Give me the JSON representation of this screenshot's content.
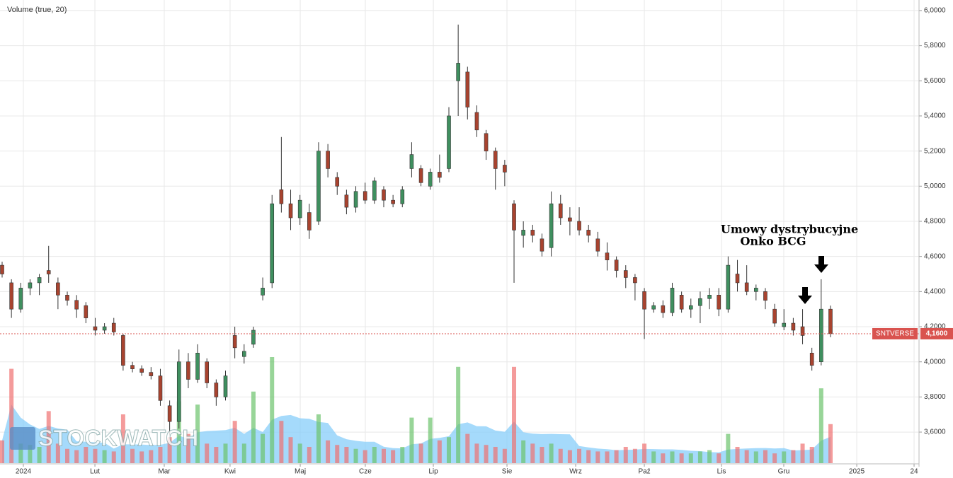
{
  "chart_data": {
    "type": "candlestick",
    "title": "Volume (true, 20)",
    "symbol": "SNTVERSE",
    "last_price": {
      "value": 4.16,
      "label": "4,1600"
    },
    "watermark": "STOCKWATCH",
    "annotation": [
      "Umowy dystrybucyjne",
      "Onko BCG"
    ],
    "up_color": "#3f8f5f",
    "down_color": "#a8432f",
    "volume_up_color": "#6cc36c",
    "volume_down_color": "#f07070",
    "volume_average_color": "#87cefa",
    "last_price_color": "#d9534f",
    "grid": true,
    "ylim": [
      3.403,
      6.06
    ],
    "yticks": [
      {
        "value": 3.6,
        "label": "3,6000"
      },
      {
        "value": 3.8,
        "label": "3,8000"
      },
      {
        "value": 4.0,
        "label": "4,0000"
      },
      {
        "value": 4.2,
        "label": "4,2000"
      },
      {
        "value": 4.4,
        "label": "4,4000"
      },
      {
        "value": 4.6,
        "label": "4,6000"
      },
      {
        "value": 4.8,
        "label": "4,8000"
      },
      {
        "value": 5.0,
        "label": "5,0000"
      },
      {
        "value": 5.2,
        "label": "5,2000"
      },
      {
        "value": 5.4,
        "label": "5,4000"
      },
      {
        "value": 5.6,
        "label": "5,6000"
      },
      {
        "value": 5.8,
        "label": "5,8000"
      },
      {
        "value": 6.0,
        "label": "6,0000"
      }
    ],
    "xlim": [
      -0.228,
      98.51
    ],
    "xticks": [
      {
        "value": 2.28,
        "label": "2024"
      },
      {
        "value": 9.97,
        "label": "Lut"
      },
      {
        "value": 17.42,
        "label": "Mar"
      },
      {
        "value": 24.49,
        "label": "Kwi"
      },
      {
        "value": 32.03,
        "label": "Maj"
      },
      {
        "value": 39.02,
        "label": "Cze"
      },
      {
        "value": 46.33,
        "label": "Lip"
      },
      {
        "value": 54.24,
        "label": "Sie"
      },
      {
        "value": 61.62,
        "label": "Wrz"
      },
      {
        "value": 69.0,
        "label": "Paź"
      },
      {
        "value": 77.29,
        "label": "Lis"
      },
      {
        "value": 83.98,
        "label": "Gru"
      },
      {
        "value": 91.82,
        "label": "2025"
      },
      {
        "value": 97.98,
        "label": "24"
      }
    ],
    "open": [
      4.55,
      4.45,
      4.3,
      4.42,
      4.45,
      4.52,
      4.45,
      4.38,
      4.35,
      4.32,
      4.2,
      4.18,
      4.22,
      4.15,
      3.98,
      3.96,
      3.94,
      3.92,
      3.75,
      3.66,
      4.0,
      3.9,
      4.0,
      3.88,
      3.8,
      4.15,
      4.03,
      4.1,
      4.38,
      4.45,
      4.98,
      4.9,
      4.82,
      4.85,
      4.8,
      5.2,
      5.05,
      4.95,
      4.88,
      4.97,
      4.92,
      4.98,
      4.92,
      4.9,
      5.1,
      5.1,
      5.0,
      5.08,
      5.1,
      5.6,
      5.65,
      5.42,
      5.3,
      5.2,
      5.12,
      4.9,
      4.72,
      4.75,
      4.7,
      4.65,
      4.9,
      4.82,
      4.8,
      4.75,
      4.7,
      4.62,
      4.58,
      4.52,
      4.48,
      4.4,
      4.3,
      4.32,
      4.28,
      4.38,
      4.3,
      4.32,
      4.36,
      4.38,
      4.3,
      4.5,
      4.45,
      4.4,
      4.4,
      4.3,
      4.2,
      4.22,
      4.2,
      4.05,
      4.0,
      4.3
    ],
    "high": [
      4.57,
      4.47,
      4.45,
      4.47,
      4.5,
      4.66,
      4.48,
      4.4,
      4.38,
      4.34,
      4.25,
      4.22,
      4.25,
      4.16,
      4.0,
      3.98,
      3.97,
      3.96,
      3.78,
      4.07,
      4.05,
      4.1,
      4.02,
      3.9,
      3.95,
      4.2,
      4.1,
      4.2,
      4.48,
      4.95,
      5.28,
      4.98,
      4.95,
      4.9,
      5.25,
      5.24,
      5.08,
      4.98,
      5.0,
      5.02,
      5.05,
      5.0,
      4.95,
      5.0,
      5.25,
      5.12,
      5.1,
      5.18,
      5.45,
      5.92,
      5.68,
      5.46,
      5.32,
      5.22,
      5.15,
      4.92,
      4.8,
      4.78,
      4.73,
      4.97,
      4.95,
      4.88,
      4.88,
      4.78,
      4.74,
      4.68,
      4.6,
      4.55,
      4.5,
      4.42,
      4.34,
      4.35,
      4.45,
      4.4,
      4.36,
      4.4,
      4.42,
      4.42,
      4.6,
      4.58,
      4.55,
      4.44,
      4.42,
      4.33,
      4.3,
      4.25,
      4.3,
      4.08,
      4.47,
      4.32
    ],
    "low": [
      4.48,
      4.25,
      4.28,
      4.38,
      4.38,
      4.45,
      4.3,
      4.32,
      4.25,
      4.22,
      4.15,
      4.16,
      4.15,
      3.95,
      3.94,
      3.92,
      3.9,
      3.75,
      3.58,
      3.62,
      3.85,
      3.88,
      3.85,
      3.75,
      3.78,
      4.02,
      3.99,
      4.08,
      4.35,
      4.42,
      4.85,
      4.75,
      4.78,
      4.7,
      4.78,
      5.05,
      4.95,
      4.84,
      4.85,
      4.9,
      4.9,
      4.88,
      4.88,
      4.88,
      5.05,
      5.0,
      4.98,
      5.02,
      5.08,
      5.4,
      5.38,
      5.28,
      5.15,
      4.98,
      5.0,
      4.45,
      4.65,
      4.68,
      4.6,
      4.6,
      4.78,
      4.72,
      4.72,
      4.68,
      4.6,
      4.52,
      4.48,
      4.42,
      4.35,
      4.13,
      4.28,
      4.25,
      4.26,
      4.28,
      4.25,
      4.22,
      4.3,
      4.26,
      4.28,
      4.4,
      4.38,
      4.35,
      4.3,
      4.2,
      4.18,
      4.15,
      4.1,
      3.95,
      3.98,
      4.14
    ],
    "close": [
      4.5,
      4.3,
      4.42,
      4.45,
      4.48,
      4.5,
      4.38,
      4.35,
      4.3,
      4.25,
      4.18,
      4.2,
      4.17,
      3.98,
      3.96,
      3.94,
      3.92,
      3.78,
      3.66,
      4.0,
      3.9,
      4.05,
      3.88,
      3.8,
      3.92,
      4.08,
      4.06,
      4.18,
      4.42,
      4.9,
      4.9,
      4.82,
      4.92,
      4.75,
      5.2,
      5.1,
      5.0,
      4.88,
      4.97,
      4.92,
      5.03,
      4.92,
      4.9,
      4.98,
      5.18,
      5.02,
      5.08,
      5.05,
      5.4,
      5.7,
      5.45,
      5.32,
      5.2,
      5.1,
      5.08,
      4.75,
      4.75,
      4.72,
      4.63,
      4.9,
      4.82,
      4.8,
      4.75,
      4.72,
      4.63,
      4.58,
      4.52,
      4.48,
      4.45,
      4.3,
      4.32,
      4.28,
      4.42,
      4.3,
      4.32,
      4.36,
      4.38,
      4.3,
      4.55,
      4.45,
      4.4,
      4.42,
      4.35,
      4.22,
      4.22,
      4.18,
      4.15,
      3.98,
      4.3,
      4.16
    ],
    "volume": [
      35,
      145,
      30,
      28,
      25,
      80,
      30,
      22,
      20,
      25,
      22,
      20,
      18,
      75,
      22,
      18,
      20,
      25,
      40,
      95,
      45,
      90,
      30,
      25,
      30,
      65,
      30,
      110,
      45,
      163,
      65,
      40,
      30,
      25,
      75,
      35,
      28,
      25,
      22,
      20,
      25,
      22,
      20,
      25,
      70,
      30,
      70,
      35,
      40,
      148,
      45,
      30,
      28,
      25,
      22,
      148,
      35,
      30,
      25,
      30,
      22,
      20,
      22,
      20,
      18,
      18,
      20,
      25,
      22,
      30,
      18,
      15,
      18,
      15,
      15,
      18,
      20,
      15,
      45,
      25,
      20,
      18,
      20,
      15,
      18,
      20,
      30,
      25,
      115,
      60
    ]
  }
}
